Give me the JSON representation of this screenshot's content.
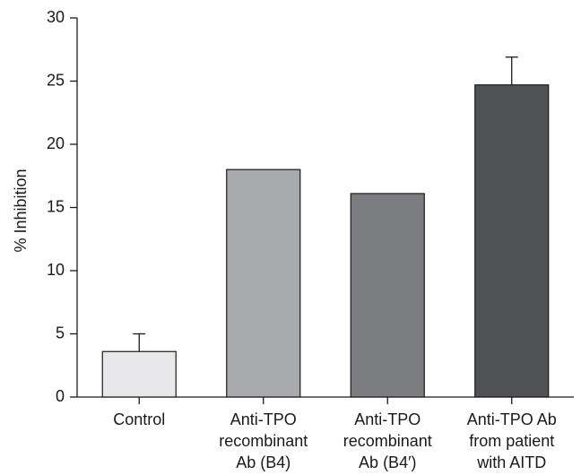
{
  "chart_data": {
    "type": "bar",
    "ylabel": "% Inhibition",
    "xlabel": "",
    "ylim": [
      0,
      30
    ],
    "yticks": [
      0,
      5,
      10,
      15,
      20,
      25,
      30
    ],
    "grid": false,
    "categories": [
      [
        "Control"
      ],
      [
        "Anti-TPO",
        "recombinant",
        "Ab (B4)"
      ],
      [
        "Anti-TPO",
        "recombinant",
        "Ab (B4′)"
      ],
      [
        "Anti-TPO Ab",
        "from patient",
        "with AITD"
      ]
    ],
    "values": [
      3.6,
      18.0,
      16.1,
      24.7
    ],
    "error_upper": [
      1.4,
      0.05,
      0.05,
      2.2
    ],
    "colors": [
      "#e8e8ea",
      "#a9aaad",
      "#7c7d80",
      "#515255"
    ]
  }
}
